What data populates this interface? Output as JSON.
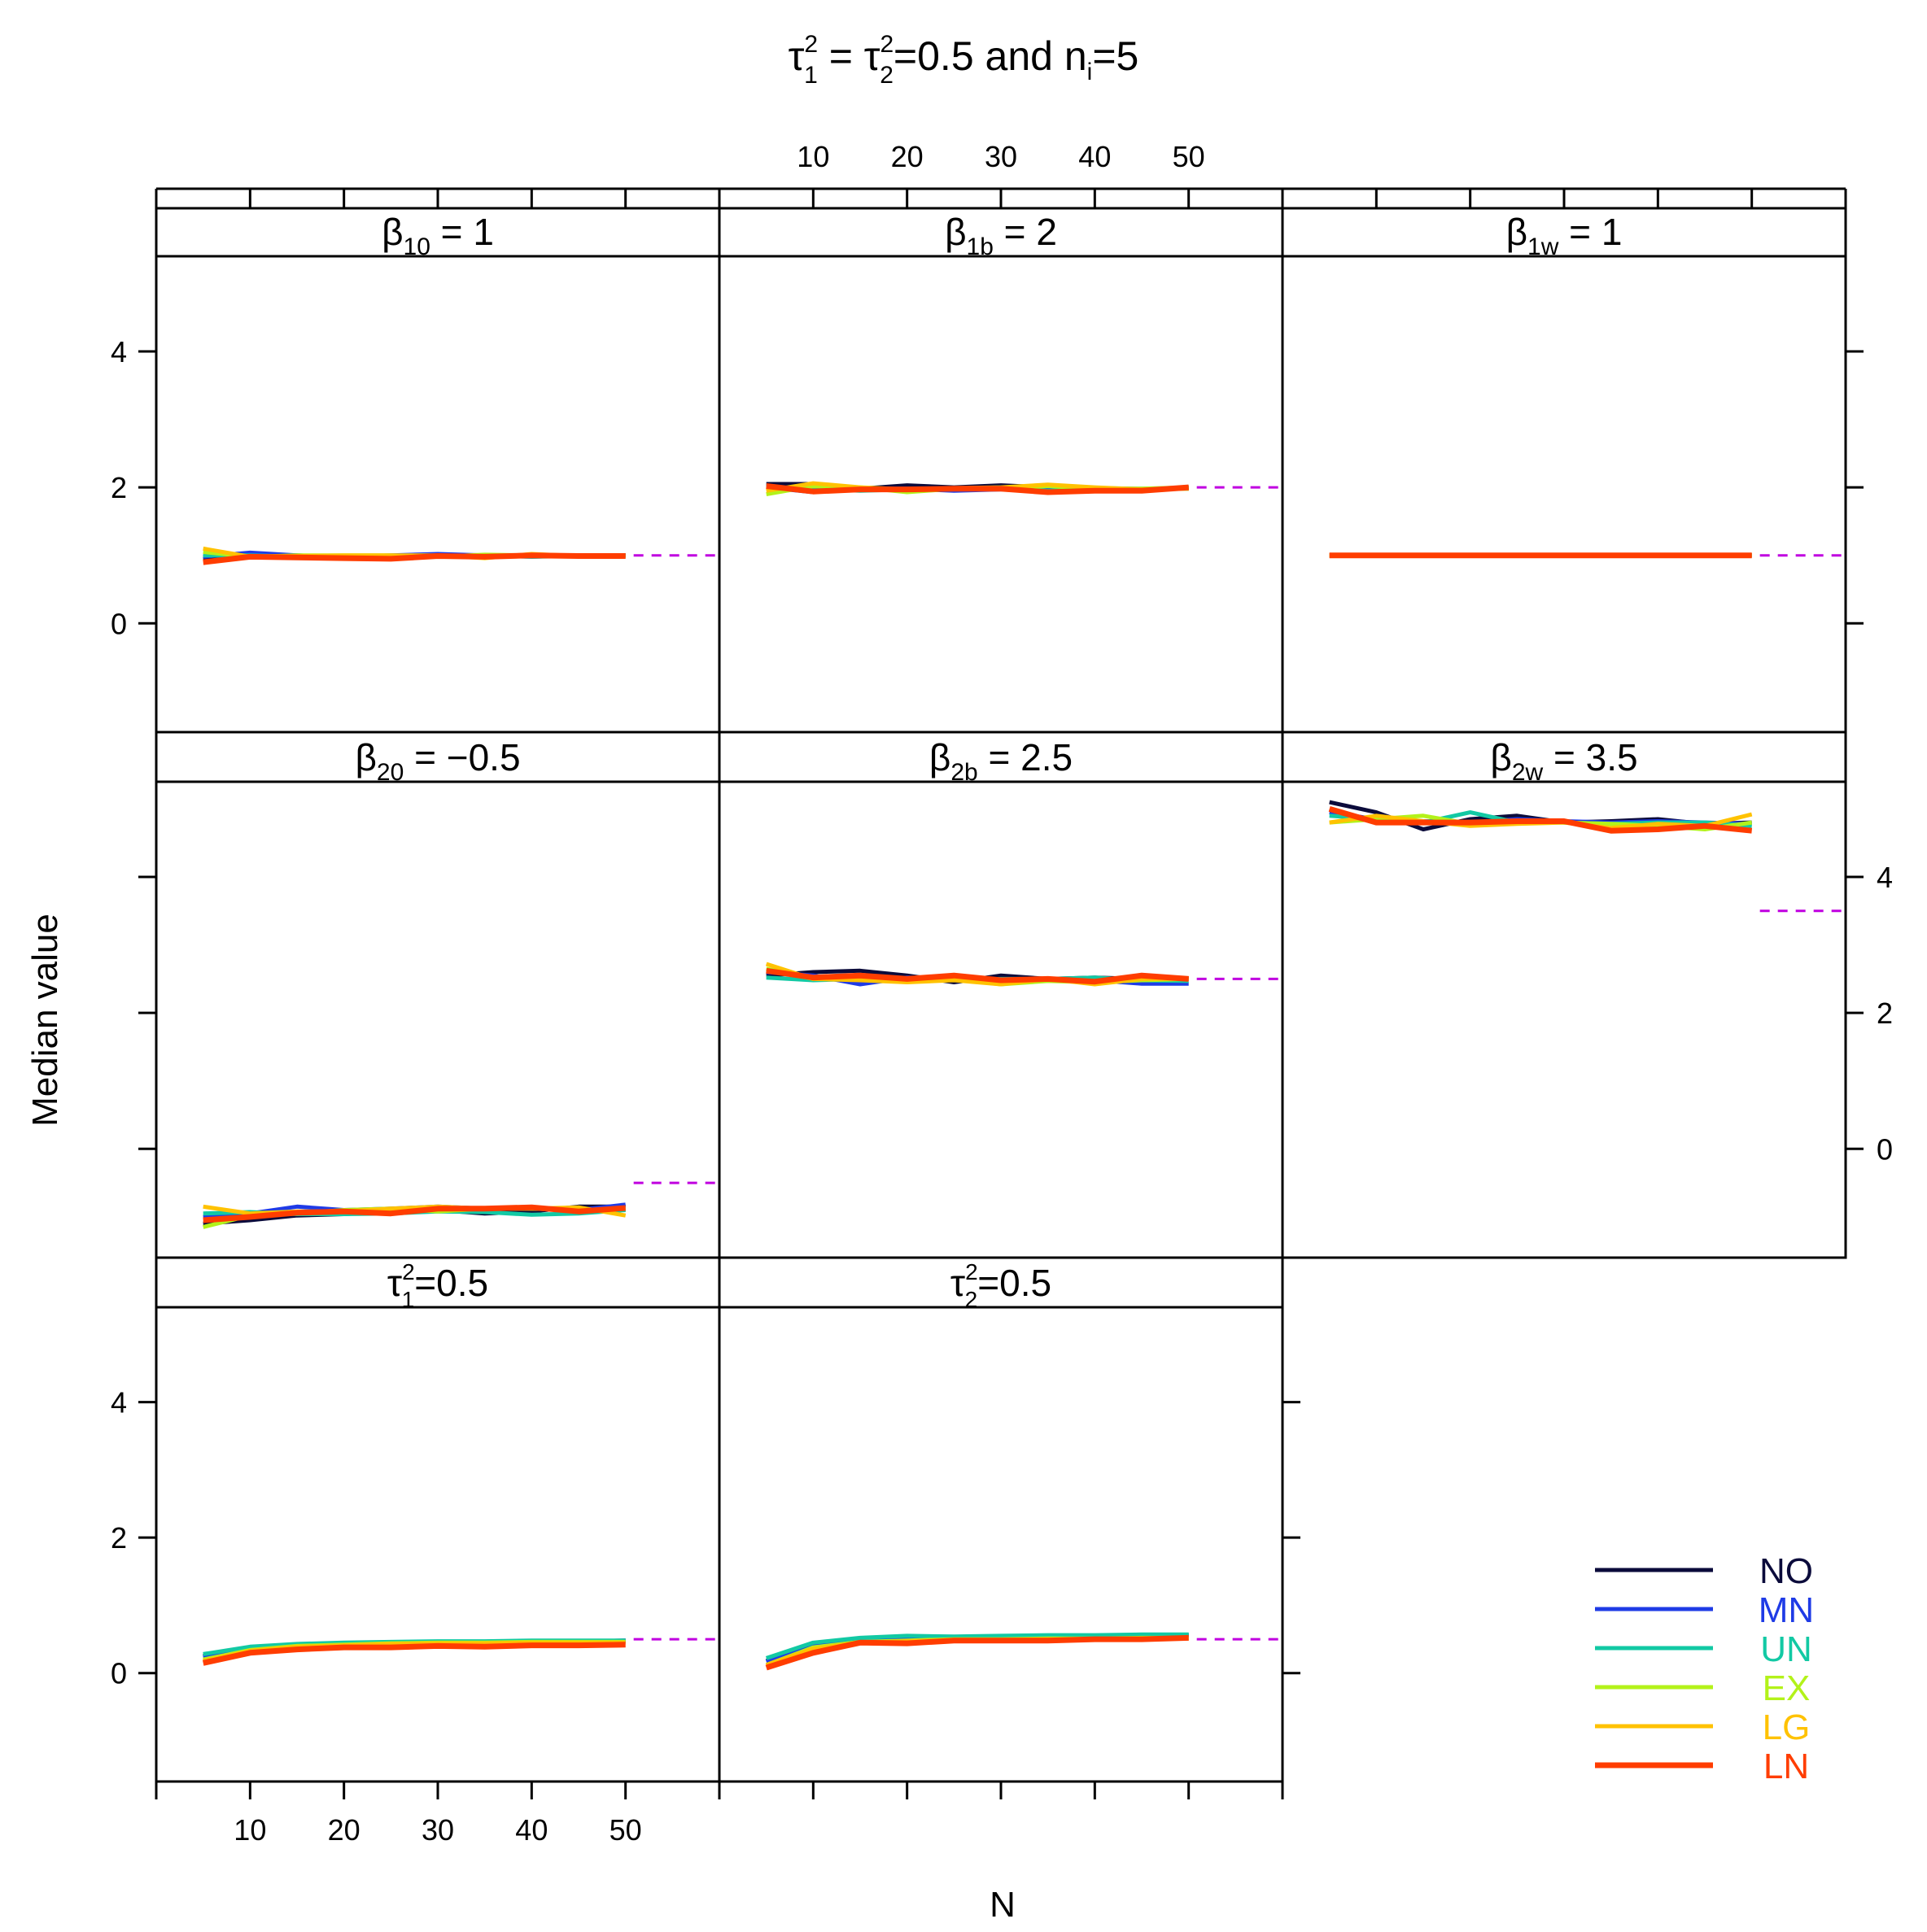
{
  "chart_data": {
    "type": "line",
    "title": {
      "tau1": "τ",
      "tau1_sup": "2",
      "tau1_sub": "1",
      "eq": " = ",
      "tau2": "τ",
      "tau2_sup": "2",
      "tau2_sub": "2",
      "rest": "=0.5 and n",
      "n_sub": "i",
      "tail": "=5"
    },
    "xlabel": "N",
    "ylabel": "Median value",
    "xlim": [
      0,
      60
    ],
    "ylim": [
      -1.6,
      5.4
    ],
    "x_ticks": [
      10,
      20,
      30,
      40,
      50
    ],
    "y_ticks": [
      0,
      2,
      4
    ],
    "x": [
      5,
      10,
      15,
      20,
      25,
      30,
      35,
      40,
      45,
      50
    ],
    "legend": [
      {
        "name": "NO",
        "color": "#0b0b3b"
      },
      {
        "name": "MN",
        "color": "#1f3be6"
      },
      {
        "name": "UN",
        "color": "#12c9a4"
      },
      {
        "name": "EX",
        "color": "#b3f21a"
      },
      {
        "name": "LG",
        "color": "#ffc200"
      },
      {
        "name": "LN",
        "color": "#ff3d00"
      }
    ],
    "reference_color": "#c000e0",
    "panels": [
      {
        "label": {
          "sym": "β",
          "sub": "10",
          "val": " = 1"
        },
        "true_value": 1.0,
        "series": {
          "NO": [
            0.95,
            1.0,
            1.0,
            0.97,
            0.98,
            1.0,
            1.0,
            0.99,
            1.0,
            1.0
          ],
          "MN": [
            0.98,
            1.04,
            1.0,
            0.98,
            1.0,
            1.02,
            1.0,
            0.98,
            1.0,
            1.0
          ],
          "UN": [
            1.0,
            1.0,
            0.98,
            0.96,
            0.98,
            0.99,
            1.0,
            0.98,
            0.99,
            1.0
          ],
          "EX": [
            1.05,
            0.98,
            1.0,
            1.0,
            1.0,
            0.98,
            1.01,
            1.0,
            1.0,
            0.98
          ],
          "LG": [
            1.1,
            0.98,
            0.99,
            1.0,
            1.0,
            1.0,
            0.96,
            1.02,
            0.99,
            1.0
          ],
          "LN": [
            0.9,
            0.98,
            0.97,
            0.96,
            0.95,
            0.99,
            0.98,
            1.0,
            0.99,
            0.99
          ]
        }
      },
      {
        "label": {
          "sym": "β",
          "sub": "1b",
          "val": " = 2"
        },
        "true_value": 2.0,
        "series": {
          "NO": [
            2.05,
            2.05,
            1.98,
            2.03,
            2.0,
            2.03,
            2.0,
            1.98,
            1.97,
            2.0
          ],
          "MN": [
            2.0,
            1.93,
            1.98,
            1.98,
            1.95,
            1.97,
            1.98,
            1.96,
            1.97,
            2.0
          ],
          "UN": [
            2.0,
            1.98,
            1.95,
            1.97,
            1.98,
            2.0,
            1.95,
            1.99,
            1.98,
            1.98
          ],
          "EX": [
            1.9,
            2.02,
            2.0,
            1.93,
            1.98,
            1.98,
            2.02,
            1.98,
            1.98,
            2.0
          ],
          "LG": [
            1.95,
            2.06,
            2.0,
            1.97,
            1.99,
            2.0,
            2.04,
            2.0,
            1.97,
            1.98
          ],
          "LN": [
            2.02,
            1.94,
            1.97,
            1.97,
            1.98,
            1.98,
            1.93,
            1.95,
            1.95,
            2.0
          ]
        }
      },
      {
        "label": {
          "sym": "β",
          "sub": "1w",
          "val": " = 1"
        },
        "true_value": 1.0,
        "series": {
          "NO": [
            1,
            1,
            1,
            1,
            1,
            1,
            1,
            1,
            1,
            1
          ],
          "MN": [
            1,
            1,
            1,
            1,
            1,
            1,
            1,
            1,
            1,
            1
          ],
          "UN": [
            1,
            1,
            1,
            1,
            1,
            1,
            1,
            1,
            1,
            1
          ],
          "EX": [
            1,
            1,
            1,
            1,
            1,
            1,
            1,
            1,
            1,
            1
          ],
          "LG": [
            1,
            1,
            1,
            1,
            1,
            1,
            1,
            1,
            1,
            1
          ],
          "LN": [
            1,
            1,
            1,
            1,
            1,
            1,
            1,
            1,
            1,
            1
          ]
        }
      },
      {
        "label": {
          "sym": "β",
          "sub": "20",
          "val": " = −0.5"
        },
        "true_value": -0.5,
        "series": {
          "NO": [
            -1.1,
            -1.05,
            -0.98,
            -0.96,
            -0.92,
            -0.9,
            -0.95,
            -0.92,
            -0.85,
            -0.85
          ],
          "MN": [
            -1.0,
            -0.95,
            -0.85,
            -0.9,
            -0.88,
            -0.85,
            -0.88,
            -0.88,
            -0.9,
            -0.82
          ],
          "UN": [
            -0.95,
            -0.93,
            -0.96,
            -0.96,
            -0.95,
            -0.92,
            -0.93,
            -0.97,
            -0.95,
            -0.9
          ],
          "EX": [
            -1.15,
            -0.98,
            -0.95,
            -0.9,
            -0.88,
            -0.92,
            -0.88,
            -0.88,
            -0.9,
            -0.88
          ],
          "LG": [
            -0.85,
            -0.95,
            -0.92,
            -0.92,
            -0.88,
            -0.85,
            -0.88,
            -0.88,
            -0.86,
            -0.98
          ],
          "LN": [
            -1.05,
            -1.0,
            -0.94,
            -0.92,
            -0.95,
            -0.88,
            -0.88,
            -0.86,
            -0.92,
            -0.87
          ]
        }
      },
      {
        "label": {
          "sym": "β",
          "sub": "2b",
          "val": " = 2.5"
        },
        "true_value": 2.5,
        "series": {
          "NO": [
            2.55,
            2.6,
            2.62,
            2.55,
            2.45,
            2.55,
            2.5,
            2.52,
            2.5,
            2.5
          ],
          "MN": [
            2.6,
            2.55,
            2.42,
            2.52,
            2.5,
            2.47,
            2.47,
            2.48,
            2.43,
            2.43
          ],
          "UN": [
            2.52,
            2.48,
            2.5,
            2.5,
            2.48,
            2.5,
            2.5,
            2.52,
            2.48,
            2.47
          ],
          "EX": [
            2.65,
            2.5,
            2.52,
            2.46,
            2.5,
            2.42,
            2.47,
            2.45,
            2.48,
            2.5
          ],
          "LG": [
            2.72,
            2.5,
            2.48,
            2.45,
            2.48,
            2.42,
            2.5,
            2.42,
            2.5,
            2.5
          ],
          "LN": [
            2.62,
            2.52,
            2.55,
            2.5,
            2.55,
            2.48,
            2.5,
            2.46,
            2.55,
            2.5
          ]
        }
      },
      {
        "label": {
          "sym": "β",
          "sub": "2w",
          "val": " = 3.5"
        },
        "true_value": 3.5,
        "series": {
          "NO": [
            5.1,
            4.95,
            4.7,
            4.85,
            4.9,
            4.8,
            4.82,
            4.85,
            4.78,
            4.8
          ],
          "MN": [
            4.95,
            4.85,
            4.82,
            4.8,
            4.85,
            4.82,
            4.8,
            4.82,
            4.8,
            4.78
          ],
          "UN": [
            4.9,
            4.85,
            4.8,
            4.95,
            4.8,
            4.8,
            4.78,
            4.8,
            4.8,
            4.75
          ],
          "EX": [
            4.8,
            4.85,
            4.9,
            4.78,
            4.82,
            4.8,
            4.78,
            4.75,
            4.7,
            4.8
          ],
          "LG": [
            4.8,
            4.9,
            4.82,
            4.75,
            4.78,
            4.8,
            4.72,
            4.78,
            4.75,
            4.92
          ],
          "LN": [
            5.0,
            4.8,
            4.8,
            4.8,
            4.82,
            4.82,
            4.68,
            4.7,
            4.75,
            4.68
          ]
        }
      },
      {
        "label": {
          "sym": "τ",
          "sup": "2",
          "sub": "1",
          "val": "=0.5"
        },
        "true_value": 0.5,
        "series": {
          "NO": [
            0.25,
            0.38,
            0.42,
            0.44,
            0.45,
            0.46,
            0.46,
            0.47,
            0.47,
            0.48
          ],
          "MN": [
            0.24,
            0.37,
            0.42,
            0.44,
            0.45,
            0.46,
            0.46,
            0.47,
            0.47,
            0.48
          ],
          "UN": [
            0.28,
            0.39,
            0.43,
            0.45,
            0.46,
            0.47,
            0.47,
            0.48,
            0.48,
            0.48
          ],
          "EX": [
            0.2,
            0.34,
            0.4,
            0.42,
            0.44,
            0.45,
            0.45,
            0.46,
            0.46,
            0.46
          ],
          "LG": [
            0.18,
            0.33,
            0.39,
            0.41,
            0.43,
            0.44,
            0.44,
            0.45,
            0.45,
            0.45
          ],
          "LN": [
            0.15,
            0.3,
            0.35,
            0.38,
            0.38,
            0.4,
            0.39,
            0.41,
            0.41,
            0.42
          ]
        }
      },
      {
        "label": {
          "sym": "τ",
          "sup": "2",
          "sub": "2",
          "val": "=0.5"
        },
        "true_value": 0.5,
        "series": {
          "NO": [
            0.18,
            0.42,
            0.5,
            0.53,
            0.53,
            0.54,
            0.55,
            0.55,
            0.56,
            0.56
          ],
          "MN": [
            0.17,
            0.41,
            0.5,
            0.52,
            0.53,
            0.54,
            0.54,
            0.55,
            0.55,
            0.56
          ],
          "UN": [
            0.22,
            0.45,
            0.52,
            0.55,
            0.54,
            0.55,
            0.56,
            0.56,
            0.57,
            0.57
          ],
          "EX": [
            0.12,
            0.38,
            0.46,
            0.48,
            0.5,
            0.5,
            0.51,
            0.51,
            0.52,
            0.52
          ],
          "LG": [
            0.12,
            0.36,
            0.45,
            0.47,
            0.49,
            0.49,
            0.5,
            0.5,
            0.51,
            0.51
          ],
          "LN": [
            0.08,
            0.3,
            0.45,
            0.44,
            0.48,
            0.48,
            0.48,
            0.5,
            0.5,
            0.52
          ]
        }
      }
    ]
  }
}
